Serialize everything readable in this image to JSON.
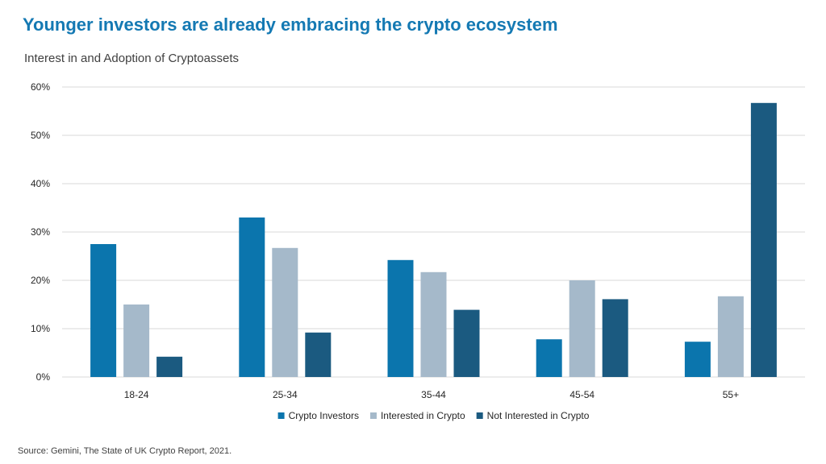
{
  "header": {
    "title": "Younger investors are already embracing the crypto ecosystem",
    "subtitle": "Interest in and Adoption of Cryptoassets"
  },
  "footer": {
    "source": "Source: Gemini, The State of UK Crypto Report, 2021."
  },
  "chart_data": {
    "type": "bar",
    "title": "Interest in and Adoption of Cryptoassets",
    "xlabel": "",
    "ylabel": "",
    "categories": [
      "18-24",
      "25-34",
      "35-44",
      "45-54",
      "55+"
    ],
    "series": [
      {
        "name": "Crypto Investors",
        "color": "#0b75ad",
        "values": [
          27.5,
          33.0,
          24.2,
          7.8,
          7.3
        ]
      },
      {
        "name": "Interested in Crypto",
        "color": "#a5b9ca",
        "values": [
          15.0,
          26.7,
          21.7,
          20.0,
          16.7
        ]
      },
      {
        "name": "Not Interested in Crypto",
        "color": "#1b5a80",
        "values": [
          4.2,
          9.2,
          13.9,
          16.1,
          56.7
        ]
      }
    ],
    "ylim": [
      0,
      60
    ],
    "yticks": [
      0,
      10,
      20,
      30,
      40,
      50,
      60
    ],
    "ytick_labels": [
      "0%",
      "10%",
      "20%",
      "30%",
      "40%",
      "50%",
      "60%"
    ],
    "grid": true,
    "legend_position": "bottom-center",
    "gridline_color": "#d9d9d9"
  }
}
